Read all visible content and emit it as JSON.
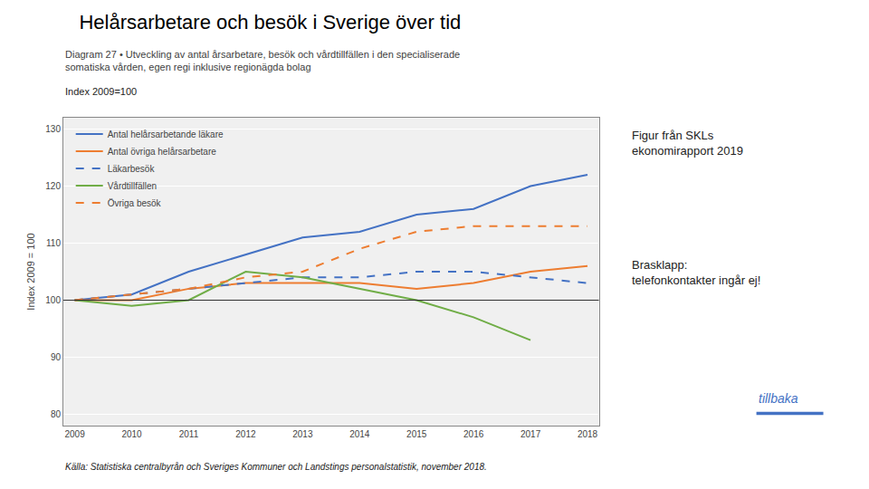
{
  "chart_data": {
    "type": "line",
    "title": "Helårsarbetare och besök i Sverige över tid",
    "subtitle": [
      "Diagram 27 • Utveckling av antal årsarbetare, besök och vårdtillfällen i den specialiserade",
      "somatiska vården, egen regi inklusive regionägda bolag"
    ],
    "ylabel": "Index 2009 = 100",
    "annotations": [
      {
        "text": "Index 2009=100"
      },
      {
        "text": "Figur från SKLs\nekonomirapport 2019"
      },
      {
        "text": "Brasklapp:\ntelefonkontakter ingår ej!"
      },
      {
        "text": "Källa: Statistiska centralbyrån och Sveriges Kommuner och Landstings personalstatistik, november 2018."
      },
      {
        "text": "tillbaka",
        "color": "#4472C4"
      }
    ],
    "x": [
      2009,
      2010,
      2011,
      2012,
      2013,
      2014,
      2015,
      2016,
      2017,
      2018
    ],
    "series": [
      {
        "name": "Antal helårsarbetande läkare",
        "color": "#4472C4",
        "line_style": "solid",
        "values": [
          100,
          101,
          105,
          108,
          111,
          112,
          115,
          116,
          120,
          122
        ]
      },
      {
        "name": "Antal övriga helårsarbetare",
        "color": "#ED7D31",
        "line_style": "solid",
        "values": [
          100,
          100,
          102,
          103,
          103,
          103,
          102,
          103,
          105,
          106
        ]
      },
      {
        "name": "Läkarbesök",
        "color": "#4472C4",
        "line_style": "dashed",
        "values": [
          100,
          101,
          102,
          103,
          104,
          104,
          105,
          105,
          104,
          103
        ]
      },
      {
        "name": "Vårdtillfällen",
        "color": "#70AD47",
        "line_style": "solid",
        "values": [
          100,
          99,
          100,
          105,
          104,
          102,
          100,
          97,
          93,
          null
        ]
      },
      {
        "name": "Övriga besök",
        "color": "#ED7D31",
        "line_style": "dashed",
        "values": [
          100,
          101,
          102,
          104,
          105,
          109,
          112,
          113,
          113,
          113
        ]
      }
    ],
    "reference_line": 100,
    "xlim": [
      2008.8,
      2018.2
    ],
    "xticks": [
      2009,
      2010,
      2011,
      2012,
      2013,
      2014,
      2015,
      2016,
      2017,
      2018
    ],
    "ylim": [
      78,
      132
    ],
    "yticks": [
      80,
      90,
      100,
      110,
      120,
      130
    ],
    "grid": "y",
    "legend": "upper left"
  }
}
